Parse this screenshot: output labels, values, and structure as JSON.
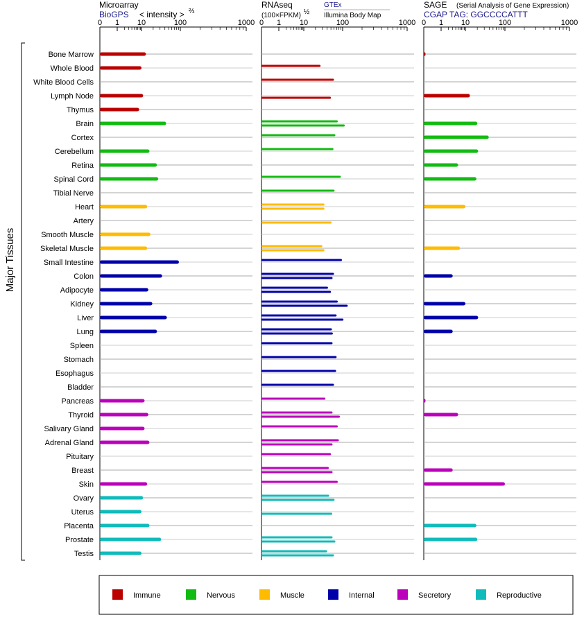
{
  "header": {
    "microarray_title": "Microarray",
    "microarray_source": "BioGPS",
    "microarray_units": "< intensity >",
    "microarray_units_exp": "⅔",
    "rnaseq_title": "RNAseq",
    "rnaseq_units": "(100×FPKM)",
    "rnaseq_units_exp": "½",
    "rnaseq_legend_top": "GTEx",
    "rnaseq_legend_bottom": "Illumina Body Map",
    "sage_title": "SAGE",
    "sage_subtitle": "(Serial Analysis of Gene Expression)",
    "sage_tag": "CGAP TAG: GGCCCCATTT"
  },
  "y_axis_label": "Major Tissues",
  "colors": {
    "Immune": "#bb0000",
    "Nervous": "#11bb11",
    "Muscle": "#ffbb00",
    "Internal": "#0000aa",
    "Secretory": "#bb00bb",
    "Reproductive": "#11bbbb"
  },
  "legend": [
    "Immune",
    "Nervous",
    "Muscle",
    "Internal",
    "Secretory",
    "Reproductive"
  ],
  "chart_data": {
    "type": "bar",
    "orientation": "horizontal",
    "x_scale": "log",
    "x_ticks": [
      "0",
      "1",
      "10",
      "100",
      "1000"
    ],
    "xlim": [
      0,
      1000
    ],
    "categories": [
      "Bone Marrow",
      "Whole Blood",
      "White Blood Cells",
      "Lymph Node",
      "Thymus",
      "Brain",
      "Cortex",
      "Cerebellum",
      "Retina",
      "Spinal Cord",
      "Tibial Nerve",
      "Heart",
      "Artery",
      "Smooth Muscle",
      "Skeletal Muscle",
      "Small Intestine",
      "Colon",
      "Adipocyte",
      "Kidney",
      "Liver",
      "Lung",
      "Spleen",
      "Stomach",
      "Esophagus",
      "Bladder",
      "Pancreas",
      "Thyroid",
      "Salivary Gland",
      "Adrenal Gland",
      "Pituitary",
      "Breast",
      "Skin",
      "Ovary",
      "Uterus",
      "Placenta",
      "Prostate",
      "Testis"
    ],
    "groups": [
      "Immune",
      "Immune",
      "Immune",
      "Immune",
      "Immune",
      "Nervous",
      "Nervous",
      "Nervous",
      "Nervous",
      "Nervous",
      "Nervous",
      "Muscle",
      "Muscle",
      "Muscle",
      "Muscle",
      "Internal",
      "Internal",
      "Internal",
      "Internal",
      "Internal",
      "Internal",
      "Internal",
      "Internal",
      "Internal",
      "Internal",
      "Secretory",
      "Secretory",
      "Secretory",
      "Secretory",
      "Secretory",
      "Secretory",
      "Secretory",
      "Reproductive",
      "Reproductive",
      "Reproductive",
      "Reproductive",
      "Reproductive"
    ],
    "panels": [
      {
        "name": "Microarray",
        "values": [
          13,
          10,
          null,
          11,
          8,
          43,
          null,
          16,
          25,
          27,
          null,
          14,
          null,
          17,
          14,
          92,
          34,
          15,
          19,
          45,
          25,
          null,
          null,
          null,
          null,
          12,
          15,
          12,
          16,
          null,
          null,
          14,
          11,
          10,
          16,
          32,
          10
        ]
      },
      {
        "name": "RNAseq GTEx",
        "values": [
          null,
          27,
          60,
          null,
          null,
          75,
          65,
          58,
          null,
          90,
          62,
          34,
          null,
          null,
          30,
          96,
          60,
          42,
          75,
          70,
          53,
          55,
          70,
          68,
          60,
          36,
          55,
          75,
          80,
          50,
          44,
          75,
          45,
          null,
          null,
          55,
          40
        ]
      },
      {
        "name": "RNAseq Illumina Body Map",
        "values": [
          null,
          null,
          null,
          50,
          null,
          108,
          null,
          null,
          null,
          null,
          null,
          34,
          52,
          null,
          34,
          null,
          55,
          50,
          120,
          103,
          56,
          null,
          null,
          null,
          null,
          null,
          85,
          null,
          55,
          null,
          55,
          null,
          62,
          54,
          null,
          65,
          60
        ]
      },
      {
        "name": "SAGE",
        "values": [
          0.1,
          null,
          null,
          13,
          null,
          20,
          39,
          21,
          5,
          19,
          null,
          10,
          null,
          null,
          6,
          null,
          3,
          null,
          10,
          21,
          3,
          null,
          null,
          null,
          null,
          0.1,
          5,
          null,
          null,
          null,
          3,
          100,
          null,
          null,
          19,
          20,
          null
        ]
      }
    ]
  }
}
